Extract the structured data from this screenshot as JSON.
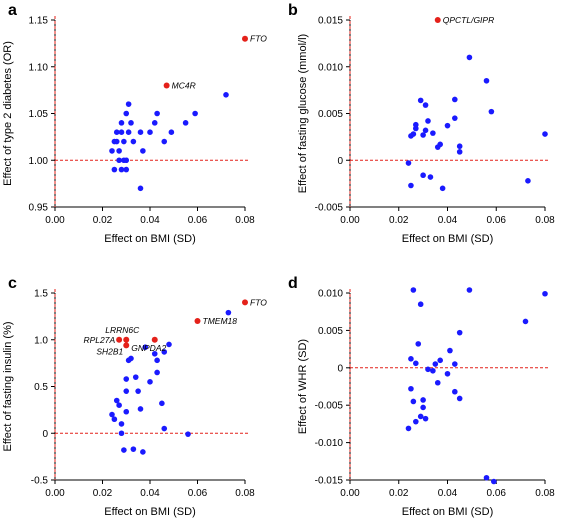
{
  "colors": {
    "blue": "#1a1aff",
    "red": "#e4211a",
    "axis": "#000000"
  },
  "chart_data": [
    {
      "panel": "a",
      "type": "scatter",
      "xlabel": "Effect on BMI (SD)",
      "ylabel": "Effect of type 2 diabetes (OR)",
      "xlim": [
        0.0,
        0.08
      ],
      "ylim": [
        0.95,
        1.15
      ],
      "xticks": [
        "0.00",
        "0.02",
        "0.04",
        "0.06",
        "0.08"
      ],
      "yticks": [
        "0.95",
        "1.00",
        "1.05",
        "1.10",
        "1.15"
      ],
      "reference_lines": {
        "x": 0,
        "y": 1.0
      },
      "blue_points": [
        {
          "x": 0.024,
          "y": 1.01
        },
        {
          "x": 0.025,
          "y": 0.99
        },
        {
          "x": 0.025,
          "y": 1.02
        },
        {
          "x": 0.026,
          "y": 1.03
        },
        {
          "x": 0.026,
          "y": 1.02
        },
        {
          "x": 0.027,
          "y": 1.01
        },
        {
          "x": 0.027,
          "y": 1.0
        },
        {
          "x": 0.028,
          "y": 1.04
        },
        {
          "x": 0.028,
          "y": 1.03
        },
        {
          "x": 0.028,
          "y": 0.99
        },
        {
          "x": 0.029,
          "y": 1.02
        },
        {
          "x": 0.029,
          "y": 1.0
        },
        {
          "x": 0.03,
          "y": 1.05
        },
        {
          "x": 0.03,
          "y": 1.0
        },
        {
          "x": 0.03,
          "y": 0.99
        },
        {
          "x": 0.031,
          "y": 1.06
        },
        {
          "x": 0.031,
          "y": 1.03
        },
        {
          "x": 0.032,
          "y": 1.04
        },
        {
          "x": 0.033,
          "y": 1.02
        },
        {
          "x": 0.036,
          "y": 0.97
        },
        {
          "x": 0.036,
          "y": 1.03
        },
        {
          "x": 0.037,
          "y": 1.01
        },
        {
          "x": 0.04,
          "y": 1.03
        },
        {
          "x": 0.042,
          "y": 1.04
        },
        {
          "x": 0.043,
          "y": 1.05
        },
        {
          "x": 0.046,
          "y": 1.02
        },
        {
          "x": 0.049,
          "y": 1.03
        },
        {
          "x": 0.055,
          "y": 1.04
        },
        {
          "x": 0.059,
          "y": 1.05
        },
        {
          "x": 0.072,
          "y": 1.07
        }
      ],
      "red_points": [
        {
          "x": 0.08,
          "y": 1.13,
          "label": "FTO",
          "dx": 5,
          "dy": 0
        },
        {
          "x": 0.047,
          "y": 1.08,
          "label": "MC4R",
          "dx": 5,
          "dy": 0
        }
      ]
    },
    {
      "panel": "b",
      "type": "scatter",
      "xlabel": "Effect on BMI (SD)",
      "ylabel": "Effect of fasting glucose (mmol/l)",
      "xlim": [
        0.0,
        0.08
      ],
      "ylim": [
        -0.005,
        0.015
      ],
      "xticks": [
        "0.00",
        "0.02",
        "0.04",
        "0.06",
        "0.08"
      ],
      "yticks": [
        "-0.005",
        "0",
        "0.005",
        "0.010",
        "0.015"
      ],
      "reference_lines": {
        "x": 0,
        "y": 0
      },
      "blue_points": [
        {
          "x": 0.024,
          "y": -0.0003
        },
        {
          "x": 0.025,
          "y": -0.0027
        },
        {
          "x": 0.025,
          "y": 0.0026
        },
        {
          "x": 0.026,
          "y": 0.0028
        },
        {
          "x": 0.027,
          "y": 0.0034
        },
        {
          "x": 0.027,
          "y": 0.0038
        },
        {
          "x": 0.029,
          "y": 0.0064
        },
        {
          "x": 0.03,
          "y": 0.0027
        },
        {
          "x": 0.03,
          "y": -0.0016
        },
        {
          "x": 0.031,
          "y": 0.0059
        },
        {
          "x": 0.031,
          "y": 0.0032
        },
        {
          "x": 0.032,
          "y": 0.0042
        },
        {
          "x": 0.033,
          "y": -0.0018
        },
        {
          "x": 0.034,
          "y": 0.0029
        },
        {
          "x": 0.036,
          "y": 0.0014
        },
        {
          "x": 0.037,
          "y": 0.0017
        },
        {
          "x": 0.038,
          "y": -0.003
        },
        {
          "x": 0.04,
          "y": 0.0037
        },
        {
          "x": 0.043,
          "y": 0.0045
        },
        {
          "x": 0.043,
          "y": 0.0065
        },
        {
          "x": 0.045,
          "y": 0.0015
        },
        {
          "x": 0.045,
          "y": 0.0009
        },
        {
          "x": 0.049,
          "y": 0.011
        },
        {
          "x": 0.056,
          "y": 0.0085
        },
        {
          "x": 0.058,
          "y": 0.0052
        },
        {
          "x": 0.073,
          "y": -0.0022
        },
        {
          "x": 0.08,
          "y": 0.0028
        }
      ],
      "red_points": [
        {
          "x": 0.036,
          "y": 0.015,
          "label": "QPCTL/GIPR",
          "dx": 5,
          "dy": 0
        }
      ]
    },
    {
      "panel": "c",
      "type": "scatter",
      "xlabel": "Effect on BMI (SD)",
      "ylabel": "Effect of fasting insulin (%)",
      "xlim": [
        0.0,
        0.08
      ],
      "ylim": [
        -0.5,
        1.5
      ],
      "xticks": [
        "0.00",
        "0.02",
        "0.04",
        "0.06",
        "0.08"
      ],
      "yticks": [
        "-0.5",
        "0",
        "0.5",
        "1.0",
        "1.5"
      ],
      "reference_lines": {
        "x": 0,
        "y": 0
      },
      "blue_points": [
        {
          "x": 0.024,
          "y": 0.2
        },
        {
          "x": 0.025,
          "y": 0.15
        },
        {
          "x": 0.026,
          "y": 0.35
        },
        {
          "x": 0.027,
          "y": 0.3
        },
        {
          "x": 0.028,
          "y": 0.1
        },
        {
          "x": 0.028,
          "y": 0.0
        },
        {
          "x": 0.029,
          "y": -0.18
        },
        {
          "x": 0.03,
          "y": 0.23
        },
        {
          "x": 0.03,
          "y": 0.45
        },
        {
          "x": 0.03,
          "y": 0.58
        },
        {
          "x": 0.031,
          "y": 0.78
        },
        {
          "x": 0.032,
          "y": 0.8
        },
        {
          "x": 0.033,
          "y": -0.17
        },
        {
          "x": 0.034,
          "y": 0.6
        },
        {
          "x": 0.035,
          "y": 0.45
        },
        {
          "x": 0.036,
          "y": 0.26
        },
        {
          "x": 0.037,
          "y": -0.2
        },
        {
          "x": 0.038,
          "y": 0.92
        },
        {
          "x": 0.04,
          "y": 0.55
        },
        {
          "x": 0.042,
          "y": 0.85
        },
        {
          "x": 0.043,
          "y": 0.78
        },
        {
          "x": 0.043,
          "y": 0.65
        },
        {
          "x": 0.045,
          "y": 0.32
        },
        {
          "x": 0.046,
          "y": 0.05
        },
        {
          "x": 0.046,
          "y": 0.87
        },
        {
          "x": 0.048,
          "y": 0.95
        },
        {
          "x": 0.056,
          "y": -0.01
        },
        {
          "x": 0.073,
          "y": 1.29
        }
      ],
      "red_points": [
        {
          "x": 0.08,
          "y": 1.4,
          "label": "FTO",
          "dx": 5,
          "dy": 0
        },
        {
          "x": 0.06,
          "y": 1.2,
          "label": "TMEM18",
          "dx": 5,
          "dy": 0
        },
        {
          "x": 0.03,
          "y": 1.0,
          "label": "LRRN6C",
          "dx": -4,
          "dy": -10,
          "anchor": "middle"
        },
        {
          "x": 0.027,
          "y": 1.0,
          "label": "RPL27A",
          "dx": -4,
          "dy": 0,
          "anchor": "end"
        },
        {
          "x": 0.03,
          "y": 0.94,
          "label": "SH2B1",
          "dx": -3,
          "dy": 6,
          "anchor": "end"
        },
        {
          "x": 0.042,
          "y": 1.0,
          "label": "GNPDA2",
          "dx": -6,
          "dy": 8,
          "anchor": "middle"
        }
      ]
    },
    {
      "panel": "d",
      "type": "scatter",
      "xlabel": "Effect on BMI (SD)",
      "ylabel": "Effect of WHR (SD)",
      "xlim": [
        0.0,
        0.08
      ],
      "ylim": [
        -0.015,
        0.01
      ],
      "xticks": [
        "0.00",
        "0.02",
        "0.04",
        "0.06",
        "0.08"
      ],
      "yticks": [
        "-0.015",
        "-0.010",
        "-0.005",
        "0",
        "0.005",
        "0.010"
      ],
      "reference_lines": {
        "x": 0,
        "y": 0
      },
      "blue_points": [
        {
          "x": 0.024,
          "y": -0.0081
        },
        {
          "x": 0.025,
          "y": 0.0012
        },
        {
          "x": 0.025,
          "y": -0.0028
        },
        {
          "x": 0.026,
          "y": 0.0104
        },
        {
          "x": 0.026,
          "y": -0.0045
        },
        {
          "x": 0.027,
          "y": -0.0072
        },
        {
          "x": 0.027,
          "y": 0.0006
        },
        {
          "x": 0.028,
          "y": 0.0032
        },
        {
          "x": 0.029,
          "y": -0.0065
        },
        {
          "x": 0.029,
          "y": 0.0085
        },
        {
          "x": 0.03,
          "y": -0.0043
        },
        {
          "x": 0.03,
          "y": -0.0053
        },
        {
          "x": 0.031,
          "y": -0.0068
        },
        {
          "x": 0.032,
          "y": -0.0002
        },
        {
          "x": 0.034,
          "y": -0.0004
        },
        {
          "x": 0.035,
          "y": 0.0005
        },
        {
          "x": 0.036,
          "y": -0.002
        },
        {
          "x": 0.037,
          "y": 0.001
        },
        {
          "x": 0.04,
          "y": -0.0008
        },
        {
          "x": 0.041,
          "y": 0.0023
        },
        {
          "x": 0.043,
          "y": -0.0032
        },
        {
          "x": 0.043,
          "y": 0.0005
        },
        {
          "x": 0.045,
          "y": -0.0041
        },
        {
          "x": 0.045,
          "y": 0.0047
        },
        {
          "x": 0.049,
          "y": 0.0104
        },
        {
          "x": 0.056,
          "y": -0.0147
        },
        {
          "x": 0.059,
          "y": -0.0152
        },
        {
          "x": 0.072,
          "y": 0.0062
        },
        {
          "x": 0.08,
          "y": 0.0099
        }
      ],
      "red_points": []
    }
  ]
}
